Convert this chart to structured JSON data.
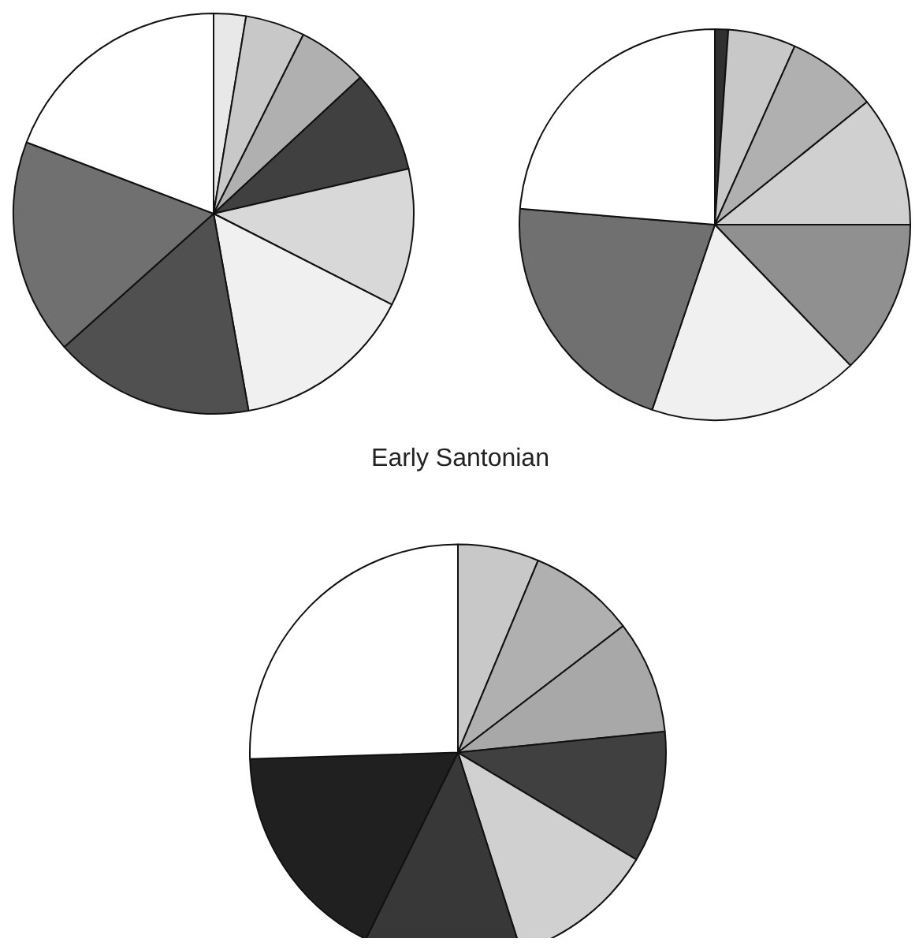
{
  "chart_data": [
    {
      "type": "pie",
      "categories": [
        null,
        null,
        null,
        null,
        null,
        null,
        null,
        null,
        null
      ],
      "values": [
        2.6,
        4.8,
        5.7,
        8.3,
        11.1,
        14.7,
        16.2,
        17.4,
        19.2
      ],
      "colors": [
        "#e8e8e8",
        "#c8c8c8",
        "#b0b0b0",
        "#404040",
        "#d8d8d8",
        "#f0f0f0",
        "#505050",
        "#707070",
        "#ffffff"
      ]
    },
    {
      "type": "pie",
      "categories": [
        null,
        null,
        null,
        null,
        null,
        null,
        null,
        null
      ],
      "values": [
        1.1,
        5.6,
        7.5,
        10.8,
        12.8,
        17.4,
        21.1,
        23.7
      ],
      "colors": [
        "#303030",
        "#c8c8c8",
        "#b0b0b0",
        "#d0d0d0",
        "#909090",
        "#f0f0f0",
        "#707070",
        "#ffffff"
      ]
    },
    {
      "type": "pie",
      "title": "Early Santonian",
      "categories": [
        null,
        null,
        null,
        null,
        null,
        null,
        null,
        null
      ],
      "values": [
        6.3,
        8.3,
        8.8,
        10.2,
        11.5,
        12.2,
        17.2,
        25.5
      ],
      "colors": [
        "#c8c8c8",
        "#b0b0b0",
        "#a8a8a8",
        "#404040",
        "#d0d0d0",
        "#383838",
        "#202020",
        "#ffffff"
      ]
    }
  ]
}
